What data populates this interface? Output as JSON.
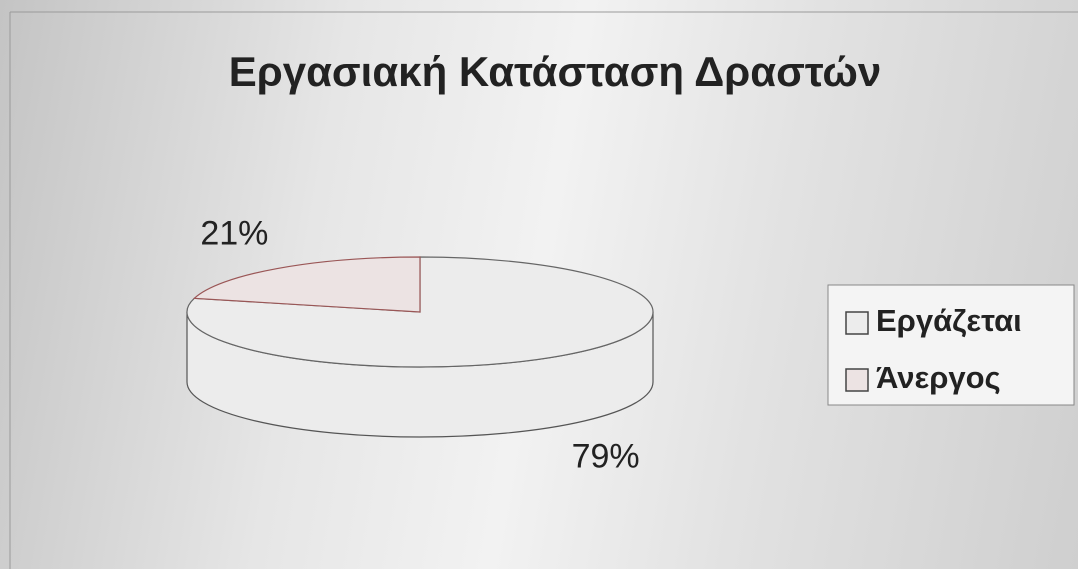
{
  "chart_data": {
    "type": "pie",
    "title": "Εργασιακή Κατάσταση Δραστών",
    "categories": [
      "Εργάζεται",
      "Άνεργος"
    ],
    "values": [
      79,
      21
    ],
    "value_labels": [
      "79%",
      "21%"
    ],
    "colors": [
      "#ececec",
      "#ece3e3"
    ],
    "legend": "right"
  }
}
